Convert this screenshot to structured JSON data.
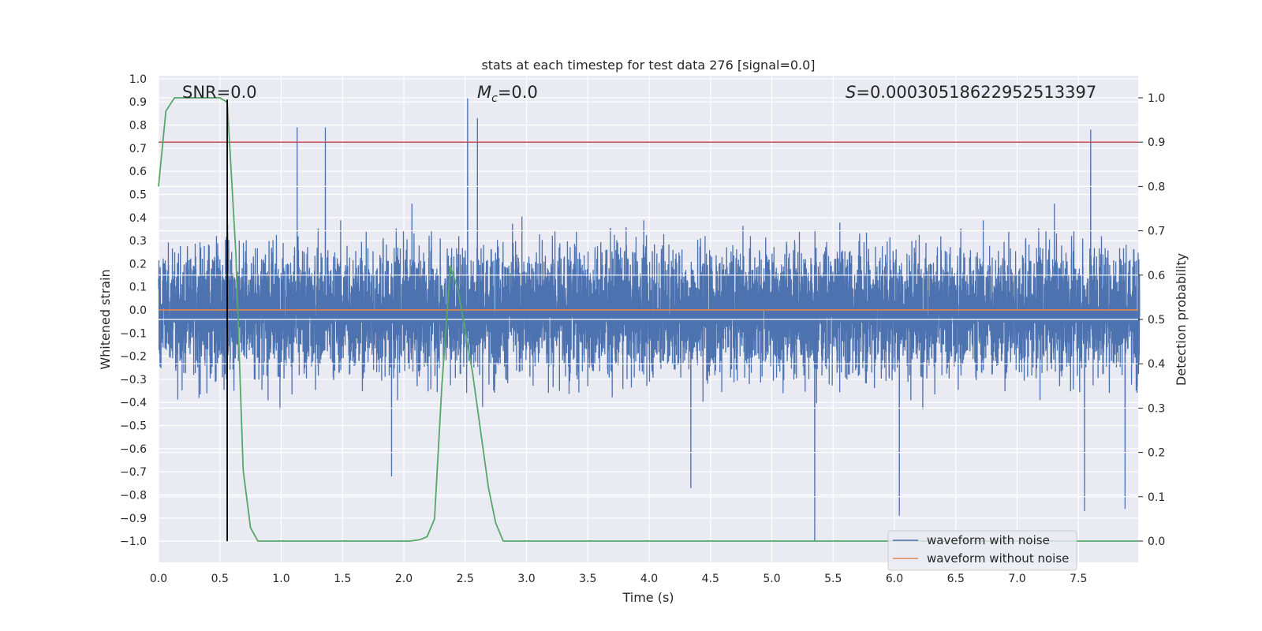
{
  "chart_data": {
    "type": "line",
    "title": "stats at each timestep for test data 276 [signal=0.0]",
    "xlabel": "Time (s)",
    "ylabel": "Whitened strain",
    "y2label": "Detection probability",
    "xlim": [
      0.0,
      8.0
    ],
    "ylim": [
      -1.0,
      1.0
    ],
    "y2lim": [
      0.0,
      1.0
    ],
    "x_ticks": [
      "0.0",
      "0.5",
      "1.0",
      "1.5",
      "2.0",
      "2.5",
      "3.0",
      "3.5",
      "4.0",
      "4.5",
      "5.0",
      "5.5",
      "6.0",
      "6.5",
      "7.0",
      "7.5"
    ],
    "y_ticks": [
      "1.0",
      "0.9",
      "0.8",
      "0.7",
      "0.6",
      "0.5",
      "0.4",
      "0.3",
      "0.2",
      "0.1",
      "0.0",
      "−0.1",
      "−0.2",
      "−0.3",
      "−0.4",
      "−0.5",
      "−0.6",
      "−0.7",
      "−0.8",
      "−0.9",
      "−1.0"
    ],
    "y2_ticks": [
      "1.0",
      "0.9",
      "0.8",
      "0.7",
      "0.6",
      "0.5",
      "0.4",
      "0.3",
      "0.2",
      "0.1",
      "0.0"
    ],
    "grid": true,
    "legend_position": "lower-right",
    "annotations": {
      "snr": "SNR=0.0",
      "mc": "M",
      "mc_sub": "c",
      "mc_value": "=0.0",
      "s_var": "S",
      "s_value": "=0.00030518622952513397"
    },
    "series": [
      {
        "name": "waveform with noise",
        "color": "#4c72b0",
        "axis": "left",
        "sample_rate_hz": 1000,
        "x_range": [
          0.0,
          8.0
        ],
        "envelope_peaks": [
          {
            "x": 0.56,
            "y": -0.85
          },
          {
            "x": 1.13,
            "y": 0.79
          },
          {
            "x": 1.36,
            "y": 0.79
          },
          {
            "x": 1.9,
            "y": -0.72
          },
          {
            "x": 2.52,
            "y": 0.92
          },
          {
            "x": 2.6,
            "y": 0.83
          },
          {
            "x": 4.34,
            "y": -0.77
          },
          {
            "x": 5.35,
            "y": -1.0
          },
          {
            "x": 6.04,
            "y": -0.89
          },
          {
            "x": 7.6,
            "y": 0.78
          },
          {
            "x": 7.55,
            "y": -0.87
          },
          {
            "x": 7.88,
            "y": -0.86
          }
        ]
      },
      {
        "name": "waveform without noise",
        "color": "#dd8452",
        "axis": "left",
        "x": [
          0.0,
          8.0
        ],
        "y": [
          0.0,
          0.0
        ]
      },
      {
        "name": "",
        "color": "#55a868",
        "axis": "right",
        "x": [
          0.0,
          0.06,
          0.13,
          0.5,
          0.56,
          0.63,
          0.69,
          0.75,
          0.81,
          0.9,
          2.05,
          2.13,
          2.19,
          2.25,
          2.31,
          2.38,
          2.44,
          2.56,
          2.69,
          2.75,
          2.81,
          2.9,
          8.0
        ],
        "y": [
          0.8,
          0.97,
          1.0,
          1.0,
          0.99,
          0.65,
          0.16,
          0.03,
          0.0,
          0.0,
          0.0,
          0.003,
          0.01,
          0.05,
          0.35,
          0.62,
          0.57,
          0.38,
          0.12,
          0.04,
          0.0,
          0.0,
          0.0
        ]
      }
    ],
    "threshold_line": {
      "color": "#c44e52",
      "axis": "right",
      "y": 0.9
    },
    "marker_line": {
      "color": "#000000",
      "x": 0.56,
      "y_range": [
        -1.0,
        0.91
      ]
    }
  }
}
